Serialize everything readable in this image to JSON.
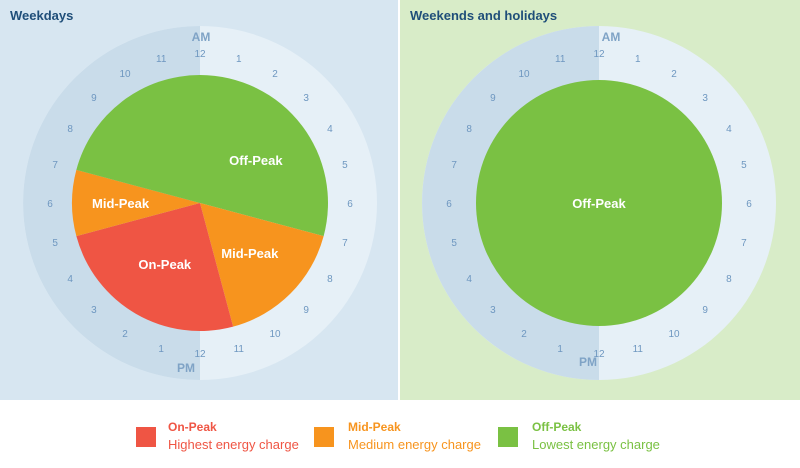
{
  "colors": {
    "on_peak": "#ef5544",
    "mid_peak": "#f7941e",
    "off_peak": "#7ac143",
    "weekday_bg": "#d7e6f1",
    "weekend_bg": "#d8ecc8",
    "dial_am": "#e6f0f7",
    "dial_pm": "#c9dcea"
  },
  "panels": [
    {
      "id": "weekdays",
      "title": "Weekdays",
      "am_label": "AM",
      "pm_label": "PM",
      "segments": [
        {
          "period": "off_peak",
          "label": "Off-Peak",
          "start_hour": 0,
          "end_hour": 7
        },
        {
          "period": "mid_peak",
          "label": "Mid-Peak",
          "start_hour": 7,
          "end_hour": 11
        },
        {
          "period": "on_peak",
          "label": "On-Peak",
          "start_hour": 11,
          "end_hour": 17
        },
        {
          "period": "mid_peak",
          "label": "Mid-Peak",
          "start_hour": 17,
          "end_hour": 19
        },
        {
          "period": "off_peak",
          "label": "",
          "start_hour": 19,
          "end_hour": 24
        }
      ]
    },
    {
      "id": "weekends",
      "title": "Weekends and holidays",
      "am_label": "AM",
      "pm_label": "PM",
      "segments": [
        {
          "period": "off_peak",
          "label": "Off-Peak",
          "start_hour": 0,
          "end_hour": 24
        }
      ]
    }
  ],
  "hour_labels": [
    "12",
    "1",
    "2",
    "3",
    "4",
    "5",
    "6",
    "7",
    "8",
    "9",
    "10",
    "11",
    "12",
    "1",
    "2",
    "3",
    "4",
    "5",
    "6",
    "7",
    "8",
    "9",
    "10",
    "11"
  ],
  "legend": [
    {
      "period": "on_peak",
      "title": "On-Peak",
      "description": "Highest energy charge"
    },
    {
      "period": "mid_peak",
      "title": "Mid-Peak",
      "description": "Medium energy charge"
    },
    {
      "period": "off_peak",
      "title": "Off-Peak",
      "description": "Lowest energy charge"
    }
  ]
}
